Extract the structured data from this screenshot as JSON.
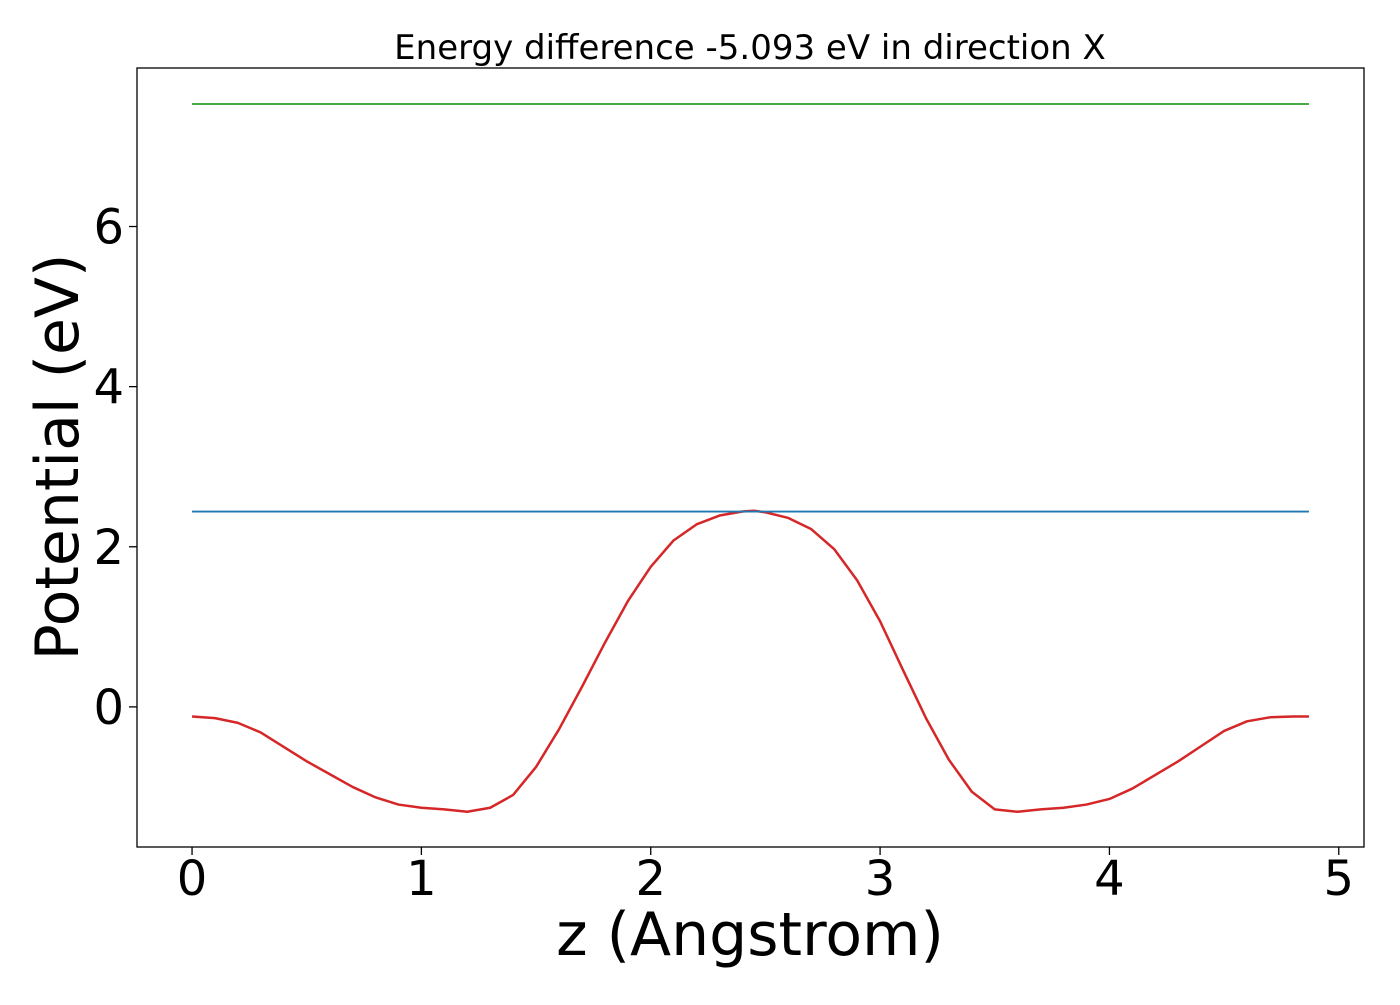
{
  "chart_data": {
    "type": "line",
    "title": "Energy difference -5.093 eV in direction X",
    "xlabel": "z (Angstrom)",
    "ylabel": "Potential (eV)",
    "xlim": [
      -0.24,
      5.11
    ],
    "ylim": [
      -1.75,
      7.98
    ],
    "xticks": [
      0,
      1,
      2,
      3,
      4,
      5
    ],
    "yticks": [
      0,
      2,
      4,
      6
    ],
    "grid": false,
    "legend": "none",
    "series": [
      {
        "color": "#d62728",
        "x": [
          0.0,
          0.1,
          0.2,
          0.3,
          0.4,
          0.5,
          0.6,
          0.7,
          0.8,
          0.9,
          1.0,
          1.1,
          1.2,
          1.3,
          1.4,
          1.5,
          1.6,
          1.7,
          1.8,
          1.9,
          2.0,
          2.1,
          2.2,
          2.3,
          2.4,
          2.45,
          2.5,
          2.6,
          2.7,
          2.8,
          2.9,
          3.0,
          3.1,
          3.2,
          3.3,
          3.4,
          3.5,
          3.6,
          3.7,
          3.8,
          3.9,
          4.0,
          4.1,
          4.2,
          4.3,
          4.4,
          4.5,
          4.6,
          4.7,
          4.8,
          4.87
        ],
        "y": [
          -0.12,
          -0.14,
          -0.2,
          -0.32,
          -0.5,
          -0.68,
          -0.84,
          -1.0,
          -1.13,
          -1.22,
          -1.26,
          -1.28,
          -1.31,
          -1.26,
          -1.1,
          -0.75,
          -0.28,
          0.25,
          0.8,
          1.32,
          1.75,
          2.08,
          2.28,
          2.39,
          2.44,
          2.45,
          2.43,
          2.36,
          2.22,
          1.97,
          1.58,
          1.07,
          0.46,
          -0.14,
          -0.66,
          -1.06,
          -1.28,
          -1.31,
          -1.28,
          -1.26,
          -1.22,
          -1.15,
          -1.02,
          -0.85,
          -0.68,
          -0.49,
          -0.3,
          -0.18,
          -0.13,
          -0.12,
          -0.12
        ]
      },
      {
        "color": "#1f77b4",
        "x": [
          0.0,
          4.87
        ],
        "y": [
          2.44,
          2.44
        ]
      },
      {
        "color": "#2ca02c",
        "x": [
          0.0,
          4.87
        ],
        "y": [
          7.53,
          7.53
        ]
      }
    ]
  }
}
